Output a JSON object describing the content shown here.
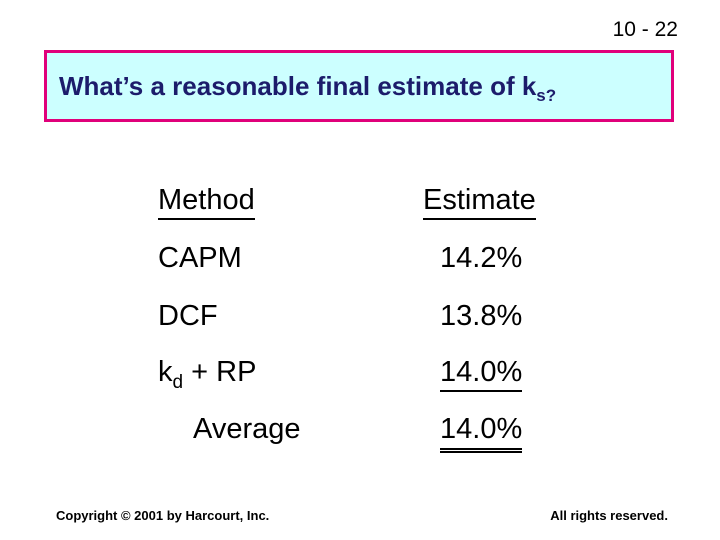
{
  "slide": {
    "number": "10 - 22"
  },
  "title": {
    "text": "What’s a reasonable final estimate of k",
    "subscript": "s?",
    "colors": {
      "background": "#ccffff",
      "border": "#e0007a",
      "text": "#1c1c6b"
    }
  },
  "table": {
    "headers": {
      "method": "Method",
      "estimate": "Estimate"
    },
    "rows": [
      {
        "method": "CAPM",
        "estimate": "14.2%"
      },
      {
        "method": "DCF",
        "estimate": "13.8%"
      },
      {
        "method_base": "k",
        "method_sub": "d",
        "method_rest": " + RP",
        "estimate": "14.0%"
      }
    ],
    "average": {
      "label": "Average",
      "estimate": "14.0%"
    }
  },
  "footer": {
    "copyright": "Copyright © 2001 by Harcourt, Inc.",
    "rights": "All rights reserved."
  }
}
